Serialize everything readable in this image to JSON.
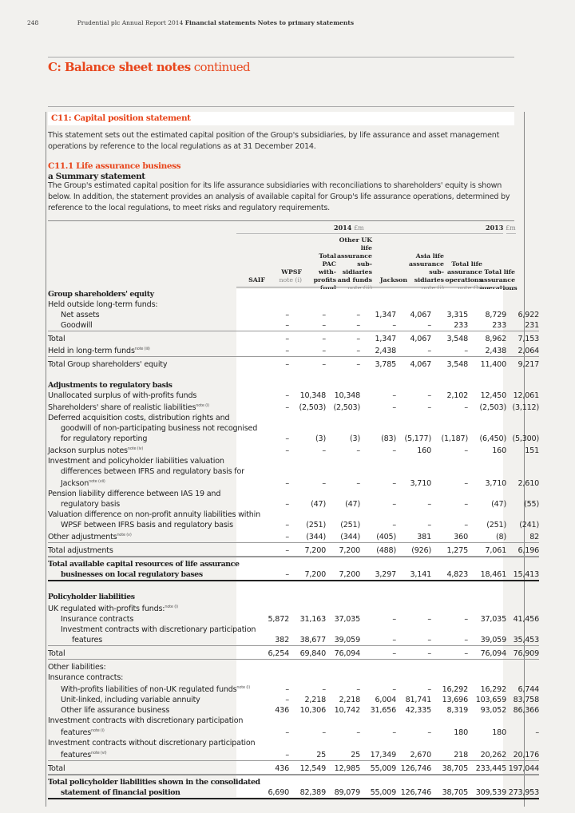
{
  "header": {
    "page_number": "248",
    "publication": "Prudential plc  Annual Report 2014",
    "section": "Financial statements  Notes to primary statements"
  },
  "section_title": {
    "bold": "C: Balance sheet notes",
    "light": " continued"
  },
  "note_title": "C11: Capital position statement",
  "intro": "This statement sets out the estimated capital position of the Group's subsidiaries, by life assurance and asset management operations by reference to the local regulations as at 31 December 2014.",
  "subheading": "C11.1 Life assurance business",
  "subsubheading": "a Summary statement",
  "body": "The Group's estimated capital position for its life assurance subsidiaries with reconciliations to shareholders' equity is shown below. In addition, the statement provides an analysis of available capital for Group's life assurance operations, determined by reference to the local regulations, to meet risks and regulatory requirements.",
  "table": {
    "year_2014": "2014",
    "year_2013": "2013",
    "unit": "£m",
    "columns": [
      {
        "label": "SAIF",
        "note": ""
      },
      {
        "label": "WPSF",
        "note": "note (i)"
      },
      {
        "label": "Total PAC with-profits fund",
        "note": ""
      },
      {
        "label": "Other UK life assurance sub-sidiaries and funds",
        "note": "note (ii)"
      },
      {
        "label": "Jackson",
        "note": ""
      },
      {
        "label": "Asia life assurance sub-sidiaries",
        "note": "note (i)"
      },
      {
        "label": "Total life assurance operations",
        "note": "note (b)"
      },
      {
        "label": "Total life assurance operations",
        "note": ""
      }
    ],
    "rows": [
      {
        "type": "bold",
        "label": "Group shareholders' equity"
      },
      {
        "label": "Held outside long-term funds:"
      },
      {
        "indent": 1,
        "label": "Net assets",
        "values": [
          "–",
          "–",
          "–",
          "1,347",
          "4,067",
          "3,315",
          "8,729",
          "6,922"
        ]
      },
      {
        "indent": 1,
        "label": "Goodwill",
        "values": [
          "–",
          "–",
          "–",
          "–",
          "–",
          "233",
          "233",
          "231"
        ]
      },
      {
        "type": "tot",
        "label": "Total",
        "values": [
          "–",
          "–",
          "–",
          "1,347",
          "4,067",
          "3,548",
          "8,962",
          "7,153"
        ]
      },
      {
        "label": "Held in long-term funds",
        "note": "note (iii)",
        "values": [
          "–",
          "–",
          "–",
          "2,438",
          "–",
          "–",
          "2,438",
          "2,064"
        ]
      },
      {
        "type": "tot",
        "label": "Total Group shareholders' equity",
        "values": [
          "–",
          "–",
          "–",
          "3,785",
          "4,067",
          "3,548",
          "11,400",
          "9,217"
        ]
      },
      {
        "type": "space"
      },
      {
        "type": "bold",
        "label": "Adjustments to regulatory basis"
      },
      {
        "label": "Unallocated surplus of with-profits funds",
        "values": [
          "–",
          "10,348",
          "10,348",
          "–",
          "–",
          "2,102",
          "12,450",
          "12,061"
        ]
      },
      {
        "label": "Shareholders' share of realistic liabilities",
        "note": "note (i)",
        "values": [
          "–",
          "(2,503)",
          "(2,503)",
          "–",
          "–",
          "–",
          "(2,503)",
          "(3,112)"
        ]
      },
      {
        "hang": true,
        "label": "Deferred acquisition costs, distribution rights and goodwill of non-participating business not recognised for regulatory reporting",
        "values": [
          "–",
          "(3)",
          "(3)",
          "(83)",
          "(5,177)",
          "(1,187)",
          "(6,450)",
          "(5,300)"
        ]
      },
      {
        "label": "Jackson surplus notes",
        "note": "note (iv)",
        "values": [
          "–",
          "–",
          "–",
          "–",
          "160",
          "–",
          "160",
          "151"
        ]
      },
      {
        "hang": true,
        "label": "Investment and policyholder liabilities valuation differences between IFRS and regulatory basis for Jackson",
        "note": "note (vii)",
        "values": [
          "–",
          "–",
          "–",
          "–",
          "3,710",
          "–",
          "3,710",
          "2,610"
        ]
      },
      {
        "hang": true,
        "label": "Pension liability difference between IAS 19 and regulatory basis",
        "values": [
          "–",
          "(47)",
          "(47)",
          "–",
          "–",
          "–",
          "(47)",
          "(55)"
        ]
      },
      {
        "hang": true,
        "label": "Valuation difference on non-profit annuity liabilities within WPSF between IFRS basis and regulatory basis",
        "values": [
          "–",
          "(251)",
          "(251)",
          "–",
          "–",
          "–",
          "(251)",
          "(241)"
        ]
      },
      {
        "label": "Other adjustments",
        "note": "note (v)",
        "values": [
          "–",
          "(344)",
          "(344)",
          "(405)",
          "381",
          "360",
          "(8)",
          "82"
        ]
      },
      {
        "type": "tot",
        "label": "Total adjustments",
        "values": [
          "–",
          "7,200",
          "7,200",
          "(488)",
          "(926)",
          "1,275",
          "7,061",
          "6,196"
        ]
      },
      {
        "type": "gtot",
        "hang": true,
        "label": "Total available capital resources of life assurance businesses on local regulatory bases",
        "values": [
          "–",
          "7,200",
          "7,200",
          "3,297",
          "3,141",
          "4,823",
          "18,461",
          "15,413"
        ]
      },
      {
        "type": "space"
      },
      {
        "type": "bold",
        "label": "Policyholder liabilities"
      },
      {
        "label": "UK regulated with-profits funds:",
        "note": "note (i)"
      },
      {
        "indent": 1,
        "label": "Insurance contracts",
        "values": [
          "5,872",
          "31,163",
          "37,035",
          "–",
          "–",
          "–",
          "37,035",
          "41,456"
        ]
      },
      {
        "indent": 1,
        "hang1": true,
        "label": "Investment contracts with discretionary participation features",
        "values": [
          "382",
          "38,677",
          "39,059",
          "–",
          "–",
          "–",
          "39,059",
          "35,453"
        ]
      },
      {
        "type": "tot",
        "label": "Total",
        "values": [
          "6,254",
          "69,840",
          "76,094",
          "–",
          "–",
          "–",
          "76,094",
          "76,909"
        ]
      },
      {
        "type": "tot",
        "label": "Other liabilities:"
      },
      {
        "label": "Insurance contracts:"
      },
      {
        "indent": 1,
        "label": "With-profits liabilities of non-UK regulated funds",
        "note": "note (i)",
        "values": [
          "–",
          "–",
          "–",
          "–",
          "–",
          "16,292",
          "16,292",
          "6,744"
        ]
      },
      {
        "indent": 1,
        "label": "Unit-linked, including variable annuity",
        "values": [
          "–",
          "2,218",
          "2,218",
          "6,004",
          "81,741",
          "13,696",
          "103,659",
          "83,758"
        ]
      },
      {
        "indent": 1,
        "label": "Other life assurance business",
        "values": [
          "436",
          "10,306",
          "10,742",
          "31,656",
          "42,335",
          "8,319",
          "93,052",
          "86,366"
        ]
      },
      {
        "hang": true,
        "label": "Investment contracts with discretionary participation features",
        "note": "note (i)",
        "values": [
          "–",
          "–",
          "–",
          "–",
          "–",
          "180",
          "180",
          "–"
        ]
      },
      {
        "hang": true,
        "label": "Investment contracts without discretionary participation features",
        "note": "note (vi)",
        "values": [
          "–",
          "25",
          "25",
          "17,349",
          "2,670",
          "218",
          "20,262",
          "20,176"
        ]
      },
      {
        "type": "tot",
        "label": "Total",
        "values": [
          "436",
          "12,549",
          "12,985",
          "55,009",
          "126,746",
          "38,705",
          "233,445",
          "197,044"
        ]
      },
      {
        "type": "gtot",
        "hang": true,
        "label": "Total policyholder liabilities shown in the consolidated statement of financial position",
        "values": [
          "6,690",
          "82,389",
          "89,079",
          "55,009",
          "126,746",
          "38,705",
          "309,539",
          "273,953"
        ]
      }
    ]
  },
  "colors": {
    "accent": "#e8461c",
    "background": "#f2f1ee"
  }
}
